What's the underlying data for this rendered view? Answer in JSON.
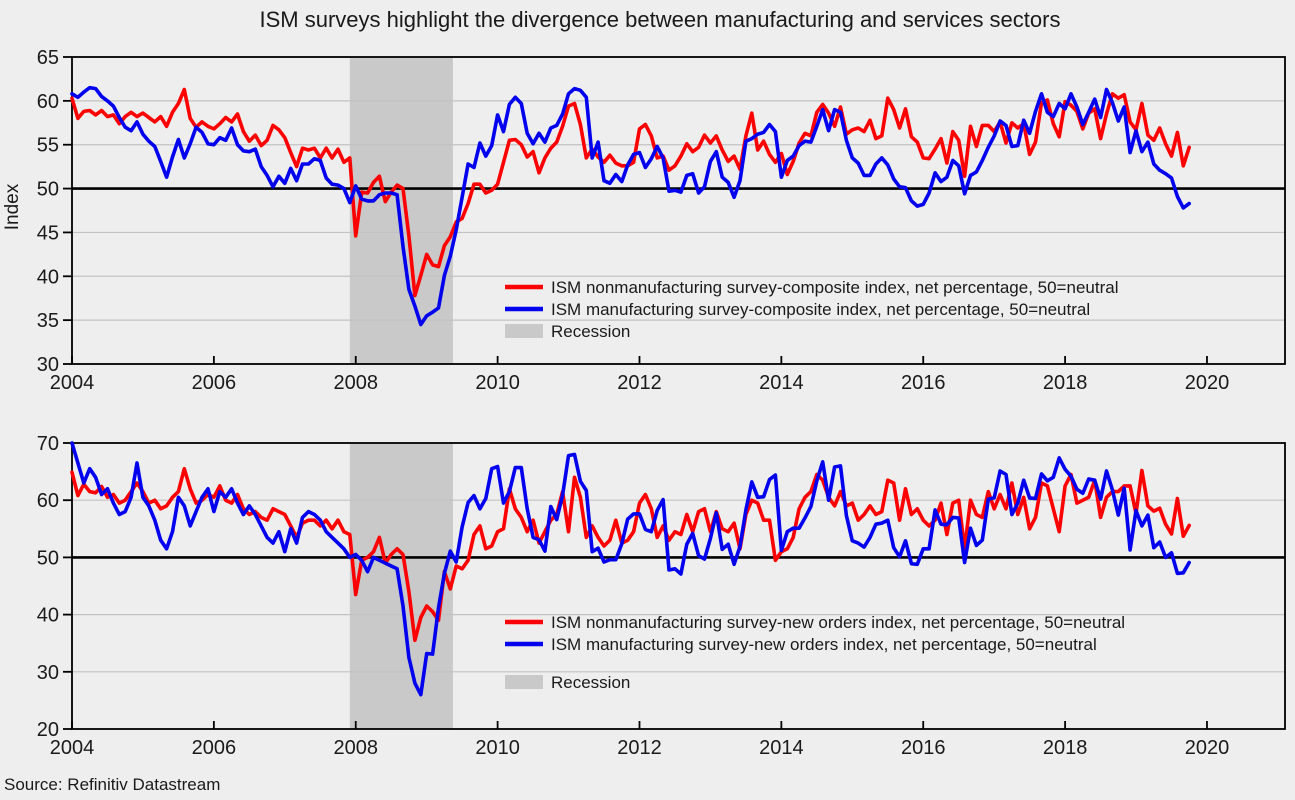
{
  "title": "ISM surveys highlight the divergence between manufacturing and services sectors",
  "source": "Source: Refinitiv Datastream",
  "colors": {
    "nonmanufacturing": "#ff0000",
    "manufacturing": "#0000ee",
    "recession_band": "#c9c9c9",
    "recession_text": "#c8c8c8",
    "grid": "#c2c2c2",
    "neutral_line": "#000000",
    "background": "#eeeeee"
  },
  "chart_data": [
    {
      "type": "line",
      "ylabel": "Index",
      "xlabel": "",
      "ylim": [
        30,
        65
      ],
      "yticks": [
        30,
        35,
        40,
        45,
        50,
        55,
        60,
        65
      ],
      "xlim": [
        2004,
        2021.1
      ],
      "xticks": [
        2004,
        2006,
        2008,
        2010,
        2012,
        2014,
        2016,
        2018,
        2020
      ],
      "grid": "horizontal",
      "neutral_line": 50,
      "legend_position": "inside-center-left",
      "recession_band": {
        "label": "Recession",
        "start": 2007.917,
        "end": 2009.37
      },
      "x_start": 2004.0,
      "x_step_months": 1,
      "series": [
        {
          "name": "ISM nonmanufacturing survey-composite index, net percentage, 50=neutral",
          "color": "#ff0000",
          "values": [
            60.3,
            58.0,
            58.8,
            58.9,
            58.4,
            58.9,
            58.2,
            58.4,
            57.4,
            58.2,
            58.7,
            58.2,
            58.6,
            58.1,
            57.6,
            58.2,
            57.1,
            58.7,
            59.7,
            61.3,
            58.0,
            57.0,
            57.6,
            57.1,
            56.8,
            57.4,
            58.1,
            57.6,
            58.5,
            56.5,
            55.4,
            56.1,
            54.9,
            55.5,
            57.2,
            56.7,
            55.8,
            54.1,
            52.5,
            54.6,
            54.4,
            54.6,
            53.5,
            54.6,
            53.5,
            54.5,
            53.0,
            53.5,
            44.6,
            49.6,
            49.5,
            50.7,
            51.4,
            48.5,
            49.6,
            50.4,
            50.0,
            44.6,
            37.8,
            40.1,
            42.5,
            41.3,
            41.1,
            43.5,
            44.5,
            46.2,
            46.6,
            48.3,
            50.5,
            50.5,
            49.5,
            49.8,
            50.5,
            53.0,
            55.5,
            55.6,
            55.0,
            53.6,
            54.2,
            51.8,
            53.5,
            54.6,
            55.3,
            57.1,
            59.4,
            59.7,
            57.3,
            53.5,
            54.5,
            53.6,
            53.0,
            53.8,
            52.9,
            52.6,
            52.6,
            53.0,
            56.8,
            57.3,
            56.0,
            53.5,
            53.7,
            52.1,
            52.6,
            53.7,
            55.1,
            54.2,
            54.7,
            56.1,
            55.2,
            56.0,
            54.4,
            53.1,
            53.7,
            52.2,
            56.0,
            58.6,
            54.4,
            55.4,
            53.9,
            53.0,
            54.0,
            51.6,
            53.1,
            55.2,
            56.3,
            56.0,
            58.7,
            59.6,
            58.6,
            57.1,
            59.3,
            56.2,
            56.7,
            56.9,
            56.5,
            57.8,
            55.7,
            56.0,
            60.3,
            59.0,
            56.9,
            59.1,
            55.9,
            55.3,
            53.5,
            53.4,
            54.5,
            55.7,
            52.9,
            56.5,
            55.5,
            51.4,
            57.1,
            54.8,
            57.2,
            57.2,
            56.5,
            57.6,
            55.2,
            57.5,
            56.9,
            57.4,
            53.9,
            55.3,
            59.8,
            60.1,
            57.4,
            55.9,
            59.9,
            59.5,
            58.8,
            56.8,
            58.6,
            59.1,
            55.7,
            58.5,
            60.8,
            60.3,
            60.7,
            57.6,
            56.7,
            59.7,
            56.1,
            55.5,
            56.9,
            55.1,
            53.7,
            56.4,
            52.6,
            54.7
          ]
        },
        {
          "name": "ISM manufacturing survey-composite index, net percentage, 50=neutral",
          "color": "#0000ee",
          "values": [
            60.8,
            60.4,
            61.0,
            61.5,
            61.4,
            60.5,
            60.0,
            59.4,
            58.1,
            57.0,
            56.6,
            57.6,
            56.2,
            55.4,
            54.8,
            53.1,
            51.3,
            53.6,
            55.6,
            53.5,
            55.1,
            57.0,
            56.4,
            55.1,
            55.0,
            55.8,
            55.5,
            56.9,
            55.0,
            54.3,
            54.2,
            54.5,
            52.5,
            51.5,
            50.2,
            51.4,
            50.6,
            52.3,
            50.9,
            52.8,
            52.8,
            53.4,
            53.2,
            51.2,
            50.5,
            50.4,
            50.0,
            48.4,
            50.3,
            48.8,
            48.6,
            48.6,
            49.3,
            49.5,
            49.5,
            49.3,
            43.4,
            38.5,
            36.6,
            34.5,
            35.5,
            35.9,
            36.4,
            40.1,
            42.3,
            45.3,
            49.0,
            52.8,
            52.4,
            55.2,
            53.7,
            54.9,
            58.4,
            56.5,
            59.6,
            60.4,
            59.7,
            56.3,
            55.1,
            56.3,
            55.3,
            56.9,
            57.2,
            58.5,
            60.8,
            61.4,
            61.2,
            60.4,
            53.5,
            55.3,
            50.9,
            50.6,
            51.6,
            50.8,
            52.7,
            53.9,
            54.1,
            52.4,
            53.4,
            54.8,
            53.5,
            49.7,
            49.8,
            49.6,
            51.5,
            51.7,
            49.5,
            50.2,
            53.1,
            54.2,
            51.3,
            50.7,
            49.0,
            50.9,
            55.4,
            55.7,
            56.2,
            56.4,
            57.3,
            56.5,
            51.3,
            53.2,
            53.7,
            54.9,
            55.4,
            55.3,
            57.1,
            59.0,
            56.6,
            59.0,
            58.7,
            55.5,
            53.5,
            52.9,
            51.5,
            51.5,
            52.8,
            53.5,
            52.7,
            51.1,
            50.2,
            50.1,
            48.6,
            48.0,
            48.2,
            49.5,
            51.8,
            50.8,
            51.3,
            53.2,
            52.6,
            49.4,
            51.5,
            51.9,
            53.2,
            54.7,
            56.0,
            57.7,
            57.2,
            54.8,
            54.9,
            57.8,
            56.3,
            58.8,
            60.8,
            58.7,
            58.2,
            59.7,
            59.1,
            60.8,
            59.3,
            57.3,
            58.7,
            60.2,
            58.1,
            61.3,
            59.8,
            57.7,
            59.3,
            54.1,
            56.6,
            54.2,
            55.3,
            52.8,
            52.1,
            51.7,
            51.2,
            49.1,
            47.8,
            48.3
          ]
        }
      ]
    },
    {
      "type": "line",
      "ylabel": "",
      "xlabel": "",
      "ylim": [
        20,
        70
      ],
      "yticks": [
        20,
        30,
        40,
        50,
        60,
        70
      ],
      "xlim": [
        2004,
        2021.1
      ],
      "xticks": [
        2004,
        2006,
        2008,
        2010,
        2012,
        2014,
        2016,
        2018,
        2020
      ],
      "grid": "horizontal",
      "neutral_line": 50,
      "legend_position": "inside-center-left",
      "recession_band": {
        "label": "Recession",
        "start": 2007.917,
        "end": 2009.37
      },
      "x_start": 2004.0,
      "x_step_months": 1,
      "series": [
        {
          "name": "ISM nonmanufacturing survey-new orders index, net percentage, 50=neutral",
          "color": "#ff0000",
          "values": [
            64.9,
            60.8,
            62.8,
            61.5,
            61.3,
            62.4,
            60.5,
            61.0,
            59.5,
            60.0,
            61.5,
            63.0,
            61.5,
            59.5,
            60.0,
            58.5,
            59.0,
            60.5,
            61.5,
            65.5,
            62.0,
            59.5,
            60.0,
            61.0,
            60.5,
            62.5,
            60.0,
            59.5,
            61.0,
            58.5,
            57.5,
            58.0,
            57.0,
            56.5,
            58.5,
            58.0,
            57.5,
            55.5,
            53.5,
            56.0,
            56.5,
            56.5,
            55.5,
            56.5,
            55.0,
            56.5,
            54.5,
            54.0,
            43.5,
            49.5,
            50.0,
            51.0,
            53.5,
            49.0,
            50.5,
            51.5,
            50.5,
            44.0,
            35.5,
            39.5,
            41.5,
            40.5,
            39.0,
            47.5,
            44.5,
            48.5,
            48.0,
            49.5,
            54.0,
            55.5,
            51.5,
            52.0,
            54.5,
            55.0,
            62.0,
            58.5,
            57.0,
            54.5,
            56.5,
            52.5,
            54.5,
            56.5,
            57.5,
            61.5,
            54.5,
            64.0,
            60.5,
            53.5,
            55.5,
            53.5,
            52.0,
            53.0,
            56.5,
            52.5,
            53.0,
            54.5,
            59.5,
            61.0,
            58.5,
            53.5,
            55.5,
            53.0,
            54.5,
            54.0,
            57.5,
            54.5,
            58.0,
            58.5,
            54.5,
            58.0,
            55.0,
            54.5,
            56.0,
            51.5,
            57.5,
            60.0,
            59.5,
            56.5,
            56.5,
            49.5,
            51.0,
            51.5,
            53.5,
            58.5,
            60.5,
            61.5,
            64.5,
            63.5,
            60.5,
            59.0,
            61.5,
            59.0,
            59.5,
            56.5,
            57.5,
            59.0,
            57.5,
            58.0,
            63.5,
            63.0,
            56.5,
            62.0,
            57.5,
            58.5,
            56.5,
            55.5,
            56.5,
            59.5,
            54.0,
            59.5,
            60.0,
            51.5,
            60.0,
            57.5,
            57.0,
            61.5,
            58.5,
            61.0,
            58.5,
            63.0,
            57.5,
            60.5,
            55.0,
            57.0,
            63.0,
            62.5,
            58.5,
            54.5,
            62.5,
            64.5,
            59.5,
            60.0,
            60.5,
            63.5,
            57.0,
            60.5,
            61.5,
            61.5,
            62.5,
            62.5,
            57.7,
            65.2,
            59.0,
            58.1,
            58.6,
            55.8,
            54.1,
            60.3,
            53.7,
            55.6
          ]
        },
        {
          "name": "ISM manufacturing survey-new orders index, net percentage, 50=neutral",
          "color": "#0000ee",
          "values": [
            70.0,
            66.5,
            63.0,
            65.5,
            64.0,
            61.0,
            62.0,
            59.5,
            57.5,
            58.0,
            60.5,
            66.5,
            60.5,
            59.0,
            56.5,
            53.0,
            51.5,
            54.5,
            60.5,
            59.0,
            55.5,
            58.0,
            60.5,
            62.0,
            58.0,
            61.5,
            60.5,
            62.0,
            59.5,
            57.5,
            59.0,
            57.5,
            55.5,
            53.5,
            52.5,
            54.5,
            51.0,
            55.0,
            52.5,
            57.0,
            58.0,
            57.5,
            56.5,
            54.5,
            53.5,
            52.5,
            51.5,
            50.0,
            50.5,
            49.5,
            47.5,
            50.0,
            49.5,
            49.0,
            48.5,
            48.0,
            41.5,
            32.5,
            28.0,
            26.0,
            33.2,
            33.1,
            41.2,
            47.2,
            51.1,
            49.2,
            55.3,
            59.6,
            60.8,
            58.5,
            60.3,
            65.5,
            65.9,
            59.5,
            61.5,
            65.7,
            65.7,
            58.5,
            53.5,
            53.1,
            51.1,
            58.9,
            56.6,
            60.9,
            67.8,
            68.0,
            63.3,
            61.7,
            51.0,
            51.6,
            49.2,
            49.6,
            49.6,
            52.4,
            56.7,
            57.6,
            57.6,
            54.9,
            54.5,
            58.2,
            60.1,
            47.8,
            48.0,
            47.1,
            52.3,
            54.2,
            50.3,
            49.7,
            53.3,
            57.8,
            51.4,
            52.3,
            48.8,
            51.9,
            58.3,
            63.2,
            60.5,
            60.6,
            63.6,
            64.4,
            51.2,
            54.5,
            55.1,
            55.1,
            56.9,
            58.9,
            63.4,
            66.7,
            60.0,
            65.8,
            66.0,
            57.3,
            52.9,
            52.5,
            51.8,
            53.5,
            55.8,
            56.0,
            56.5,
            51.7,
            50.1,
            52.9,
            48.9,
            48.8,
            51.5,
            51.5,
            58.3,
            55.8,
            55.7,
            57.0,
            56.9,
            49.1,
            55.1,
            52.1,
            53.0,
            60.2,
            60.4,
            65.1,
            64.5,
            57.5,
            59.5,
            63.5,
            60.4,
            60.3,
            64.6,
            63.4,
            64.0,
            67.4,
            65.4,
            64.2,
            61.9,
            61.2,
            63.7,
            63.5,
            60.2,
            65.1,
            61.8,
            57.4,
            62.1,
            51.3,
            58.2,
            55.5,
            57.4,
            51.7,
            52.7,
            50.0,
            50.8,
            47.2,
            47.3,
            49.1
          ]
        }
      ]
    }
  ]
}
